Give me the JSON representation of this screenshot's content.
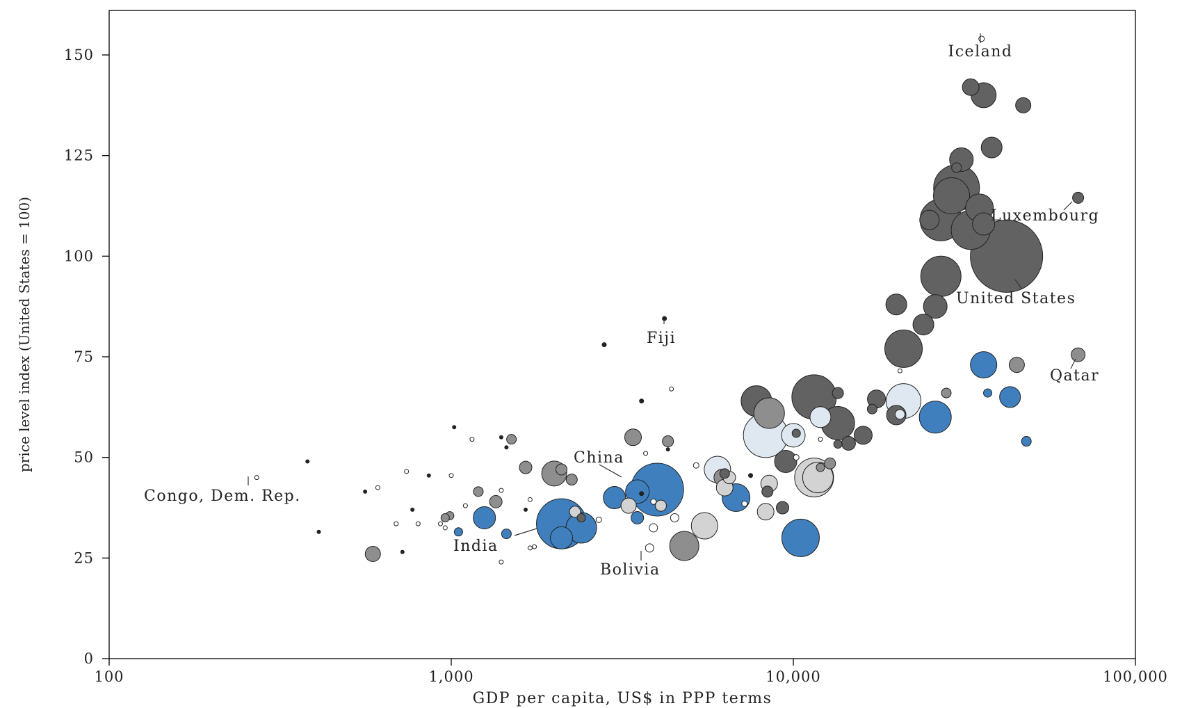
{
  "chart_data": {
    "type": "scatter",
    "title": "",
    "xlabel": "GDP per capita, US$ in PPP terms",
    "ylabel": "price level index (United States = 100)",
    "x_scale": "log",
    "xlim": [
      100,
      100000
    ],
    "ylim": [
      0,
      160
    ],
    "x_ticks": [
      {
        "value": 100,
        "label": "100"
      },
      {
        "value": 1000,
        "label": "1,000"
      },
      {
        "value": 10000,
        "label": "10,000"
      },
      {
        "value": 100000,
        "label": "100,000"
      }
    ],
    "y_ticks": [
      {
        "value": 0,
        "label": "0"
      },
      {
        "value": 25,
        "label": "25"
      },
      {
        "value": 50,
        "label": "50"
      },
      {
        "value": 75,
        "label": "75"
      },
      {
        "value": 100,
        "label": "100"
      },
      {
        "value": 125,
        "label": "125"
      },
      {
        "value": 150,
        "label": "150"
      }
    ],
    "grid": false,
    "colors": {
      "dark": "#626262",
      "gray": "#8e8e8e",
      "light": "#d3d3d3",
      "paleblue": "#dfe8f1",
      "blue": "#3f7fbd",
      "tiny": "#ffffff",
      "dot": "#222222"
    },
    "annotations": [
      {
        "text": "Iceland",
        "x": 35500,
        "y": 154
      },
      {
        "text": "Luxembourg",
        "x": 68000,
        "y": 114.5
      },
      {
        "text": "United States",
        "x": 42000,
        "y": 100
      },
      {
        "text": "Qatar",
        "x": 68000,
        "y": 75.5
      },
      {
        "text": "Fiji",
        "x": 4200,
        "y": 84.5
      },
      {
        "text": "China",
        "x": 4000,
        "y": 42
      },
      {
        "text": "Congo, Dem. Rep.",
        "x": 270,
        "y": 45
      },
      {
        "text": "India",
        "x": 2200,
        "y": 33
      },
      {
        "text": "Bolivia",
        "x": 3800,
        "y": 27.5
      }
    ],
    "points": [
      {
        "x": 35500,
        "y": 154,
        "s": 4,
        "c": "tiny"
      },
      {
        "x": 33000,
        "y": 142,
        "s": 12,
        "c": "dark"
      },
      {
        "x": 36000,
        "y": 140,
        "s": 18,
        "c": "dark"
      },
      {
        "x": 47000,
        "y": 137.5,
        "s": 11,
        "c": "dark"
      },
      {
        "x": 38000,
        "y": 127,
        "s": 15,
        "c": "dark"
      },
      {
        "x": 31000,
        "y": 124,
        "s": 17,
        "c": "dark"
      },
      {
        "x": 30000,
        "y": 122,
        "s": 7,
        "c": "dark"
      },
      {
        "x": 30000,
        "y": 117,
        "s": 33,
        "c": "dark"
      },
      {
        "x": 29000,
        "y": 115,
        "s": 26,
        "c": "dark"
      },
      {
        "x": 35000,
        "y": 112,
        "s": 20,
        "c": "dark"
      },
      {
        "x": 68000,
        "y": 114.5,
        "s": 8,
        "c": "dark"
      },
      {
        "x": 27000,
        "y": 109,
        "s": 30,
        "c": "dark"
      },
      {
        "x": 25000,
        "y": 109,
        "s": 14,
        "c": "dark"
      },
      {
        "x": 36000,
        "y": 108,
        "s": 16,
        "c": "dark"
      },
      {
        "x": 33000,
        "y": 106.5,
        "s": 28,
        "c": "dark"
      },
      {
        "x": 42000,
        "y": 100,
        "s": 52,
        "c": "dark"
      },
      {
        "x": 27000,
        "y": 95,
        "s": 29,
        "c": "dark"
      },
      {
        "x": 20000,
        "y": 88,
        "s": 15,
        "c": "dark"
      },
      {
        "x": 26000,
        "y": 87.5,
        "s": 17,
        "c": "dark"
      },
      {
        "x": 24000,
        "y": 83,
        "s": 15,
        "c": "dark"
      },
      {
        "x": 21000,
        "y": 77,
        "s": 27,
        "c": "dark"
      },
      {
        "x": 36000,
        "y": 73,
        "s": 19,
        "c": "blue"
      },
      {
        "x": 45000,
        "y": 73,
        "s": 11,
        "c": "gray"
      },
      {
        "x": 68000,
        "y": 75.5,
        "s": 10,
        "c": "gray"
      },
      {
        "x": 20500,
        "y": 71.5,
        "s": 3,
        "c": "tiny"
      },
      {
        "x": 28000,
        "y": 66,
        "s": 7,
        "c": "gray"
      },
      {
        "x": 37000,
        "y": 66,
        "s": 6,
        "c": "blue"
      },
      {
        "x": 43000,
        "y": 65,
        "s": 15,
        "c": "blue"
      },
      {
        "x": 11500,
        "y": 65,
        "s": 32,
        "c": "dark"
      },
      {
        "x": 7800,
        "y": 64,
        "s": 22,
        "c": "dark"
      },
      {
        "x": 13500,
        "y": 66,
        "s": 8,
        "c": "dark"
      },
      {
        "x": 17500,
        "y": 64.5,
        "s": 13,
        "c": "dark"
      },
      {
        "x": 21000,
        "y": 64,
        "s": 25,
        "c": "paleblue"
      },
      {
        "x": 17000,
        "y": 62,
        "s": 7,
        "c": "dark"
      },
      {
        "x": 20000,
        "y": 60.5,
        "s": 14,
        "c": "dark"
      },
      {
        "x": 20500,
        "y": 60.7,
        "s": 7,
        "c": "paleblue"
      },
      {
        "x": 26000,
        "y": 60,
        "s": 23,
        "c": "blue"
      },
      {
        "x": 8500,
        "y": 61,
        "s": 22,
        "c": "gray"
      },
      {
        "x": 12000,
        "y": 60,
        "s": 15,
        "c": "paleblue"
      },
      {
        "x": 13500,
        "y": 58.5,
        "s": 24,
        "c": "dark"
      },
      {
        "x": 8300,
        "y": 55.5,
        "s": 32,
        "c": "paleblue"
      },
      {
        "x": 10000,
        "y": 55.5,
        "s": 17,
        "c": "paleblue"
      },
      {
        "x": 10200,
        "y": 56,
        "s": 6,
        "c": "dark"
      },
      {
        "x": 16000,
        "y": 55.5,
        "s": 13,
        "c": "dark"
      },
      {
        "x": 12000,
        "y": 54.5,
        "s": 3,
        "c": "tiny"
      },
      {
        "x": 14500,
        "y": 53.5,
        "s": 10,
        "c": "dark"
      },
      {
        "x": 13500,
        "y": 53.3,
        "s": 6,
        "c": "dark"
      },
      {
        "x": 48000,
        "y": 54,
        "s": 7,
        "c": "blue"
      },
      {
        "x": 9500,
        "y": 49,
        "s": 16,
        "c": "dark"
      },
      {
        "x": 10200,
        "y": 50,
        "s": 4,
        "c": "tiny"
      },
      {
        "x": 12800,
        "y": 48.5,
        "s": 8,
        "c": "gray"
      },
      {
        "x": 12000,
        "y": 47.5,
        "s": 6,
        "c": "gray"
      },
      {
        "x": 11500,
        "y": 45,
        "s": 28,
        "c": "light"
      },
      {
        "x": 11800,
        "y": 45,
        "s": 22,
        "c": "light"
      },
      {
        "x": 6000,
        "y": 47,
        "s": 19,
        "c": "paleblue"
      },
      {
        "x": 6300,
        "y": 46,
        "s": 7,
        "c": "dark"
      },
      {
        "x": 6200,
        "y": 45,
        "s": 12,
        "c": "gray"
      },
      {
        "x": 6500,
        "y": 45,
        "s": 9,
        "c": "light"
      },
      {
        "x": 5200,
        "y": 48,
        "s": 4,
        "c": "tiny"
      },
      {
        "x": 7500,
        "y": 45.5,
        "s": 3,
        "c": "dot"
      },
      {
        "x": 8500,
        "y": 43.5,
        "s": 12,
        "c": "light"
      },
      {
        "x": 6300,
        "y": 42.5,
        "s": 12,
        "c": "light"
      },
      {
        "x": 8400,
        "y": 41.5,
        "s": 8,
        "c": "dark"
      },
      {
        "x": 6800,
        "y": 40,
        "s": 20,
        "c": "blue"
      },
      {
        "x": 7200,
        "y": 38.5,
        "s": 4,
        "c": "tiny"
      },
      {
        "x": 9300,
        "y": 37.5,
        "s": 9,
        "c": "dark"
      },
      {
        "x": 8300,
        "y": 36.5,
        "s": 12,
        "c": "light"
      },
      {
        "x": 10500,
        "y": 30,
        "s": 27,
        "c": "blue"
      },
      {
        "x": 5500,
        "y": 33,
        "s": 19,
        "c": "light"
      },
      {
        "x": 4800,
        "y": 28,
        "s": 21,
        "c": "gray"
      },
      {
        "x": 4500,
        "y": 35,
        "s": 6,
        "c": "tiny"
      },
      {
        "x": 4000,
        "y": 42,
        "s": 38,
        "c": "blue"
      },
      {
        "x": 3500,
        "y": 41.5,
        "s": 17,
        "c": "blue"
      },
      {
        "x": 3600,
        "y": 41,
        "s": 3,
        "c": "dot"
      },
      {
        "x": 3000,
        "y": 40,
        "s": 16,
        "c": "blue"
      },
      {
        "x": 3300,
        "y": 38,
        "s": 11,
        "c": "light"
      },
      {
        "x": 3900,
        "y": 39,
        "s": 4,
        "c": "tiny"
      },
      {
        "x": 4100,
        "y": 38,
        "s": 8,
        "c": "light"
      },
      {
        "x": 3500,
        "y": 35,
        "s": 9,
        "c": "blue"
      },
      {
        "x": 3900,
        "y": 32.5,
        "s": 6,
        "c": "tiny"
      },
      {
        "x": 3800,
        "y": 27.5,
        "s": 6,
        "c": "tiny"
      },
      {
        "x": 3400,
        "y": 55,
        "s": 12,
        "c": "gray"
      },
      {
        "x": 4300,
        "y": 54,
        "s": 8,
        "c": "gray"
      },
      {
        "x": 4300,
        "y": 52,
        "s": 2.5,
        "c": "dot"
      },
      {
        "x": 3700,
        "y": 51,
        "s": 3,
        "c": "tiny"
      },
      {
        "x": 3600,
        "y": 64,
        "s": 3,
        "c": "dot"
      },
      {
        "x": 4400,
        "y": 67,
        "s": 3,
        "c": "tiny"
      },
      {
        "x": 2800,
        "y": 78,
        "s": 3,
        "c": "dot"
      },
      {
        "x": 4200,
        "y": 84.5,
        "s": 3,
        "c": "dot"
      },
      {
        "x": 2100,
        "y": 33.5,
        "s": 36,
        "c": "blue"
      },
      {
        "x": 2400,
        "y": 32.5,
        "s": 22,
        "c": "blue"
      },
      {
        "x": 2100,
        "y": 30,
        "s": 16,
        "c": "blue"
      },
      {
        "x": 2300,
        "y": 36.5,
        "s": 8,
        "c": "light"
      },
      {
        "x": 2400,
        "y": 35,
        "s": 6,
        "c": "dark"
      },
      {
        "x": 2700,
        "y": 34.5,
        "s": 4,
        "c": "tiny"
      },
      {
        "x": 2000,
        "y": 46,
        "s": 18,
        "c": "gray"
      },
      {
        "x": 2100,
        "y": 47,
        "s": 8,
        "c": "gray"
      },
      {
        "x": 2250,
        "y": 44.5,
        "s": 8,
        "c": "gray"
      },
      {
        "x": 1650,
        "y": 47.5,
        "s": 9,
        "c": "gray"
      },
      {
        "x": 1500,
        "y": 54.5,
        "s": 7,
        "c": "gray"
      },
      {
        "x": 1400,
        "y": 55,
        "s": 2.5,
        "c": "dot"
      },
      {
        "x": 1450,
        "y": 52.5,
        "s": 2.5,
        "c": "dot"
      },
      {
        "x": 1150,
        "y": 54.5,
        "s": 3,
        "c": "tiny"
      },
      {
        "x": 1020,
        "y": 57.5,
        "s": 2.5,
        "c": "dot"
      },
      {
        "x": 1000,
        "y": 45.5,
        "s": 3,
        "c": "tiny"
      },
      {
        "x": 1200,
        "y": 41.5,
        "s": 7,
        "c": "gray"
      },
      {
        "x": 1400,
        "y": 41.8,
        "s": 3,
        "c": "tiny"
      },
      {
        "x": 1350,
        "y": 39,
        "s": 9,
        "c": "gray"
      },
      {
        "x": 1100,
        "y": 38,
        "s": 3,
        "c": "tiny"
      },
      {
        "x": 1700,
        "y": 39.5,
        "s": 3,
        "c": "tiny"
      },
      {
        "x": 1650,
        "y": 37,
        "s": 2.5,
        "c": "dot"
      },
      {
        "x": 1250,
        "y": 35,
        "s": 16,
        "c": "blue"
      },
      {
        "x": 990,
        "y": 35.5,
        "s": 6,
        "c": "gray"
      },
      {
        "x": 960,
        "y": 35,
        "s": 6,
        "c": "gray"
      },
      {
        "x": 930,
        "y": 33.5,
        "s": 3,
        "c": "tiny"
      },
      {
        "x": 960,
        "y": 32.5,
        "s": 3,
        "c": "tiny"
      },
      {
        "x": 1050,
        "y": 31.5,
        "s": 6,
        "c": "blue"
      },
      {
        "x": 1450,
        "y": 31,
        "s": 7,
        "c": "blue"
      },
      {
        "x": 1700,
        "y": 27.5,
        "s": 3,
        "c": "tiny"
      },
      {
        "x": 1750,
        "y": 27.8,
        "s": 3,
        "c": "tiny"
      },
      {
        "x": 1400,
        "y": 24,
        "s": 3,
        "c": "tiny"
      },
      {
        "x": 860,
        "y": 45.5,
        "s": 2.5,
        "c": "dot"
      },
      {
        "x": 740,
        "y": 46.5,
        "s": 3,
        "c": "tiny"
      },
      {
        "x": 610,
        "y": 42.5,
        "s": 3,
        "c": "tiny"
      },
      {
        "x": 560,
        "y": 41.5,
        "s": 2.5,
        "c": "dot"
      },
      {
        "x": 770,
        "y": 37,
        "s": 2.5,
        "c": "dot"
      },
      {
        "x": 690,
        "y": 33.5,
        "s": 3,
        "c": "tiny"
      },
      {
        "x": 800,
        "y": 33.5,
        "s": 3,
        "c": "tiny"
      },
      {
        "x": 720,
        "y": 26.5,
        "s": 2.5,
        "c": "dot"
      },
      {
        "x": 590,
        "y": 26,
        "s": 11,
        "c": "gray"
      },
      {
        "x": 380,
        "y": 49,
        "s": 2.5,
        "c": "dot"
      },
      {
        "x": 270,
        "y": 45,
        "s": 3,
        "c": "tiny"
      },
      {
        "x": 410,
        "y": 31.5,
        "s": 2.5,
        "c": "dot"
      }
    ]
  }
}
